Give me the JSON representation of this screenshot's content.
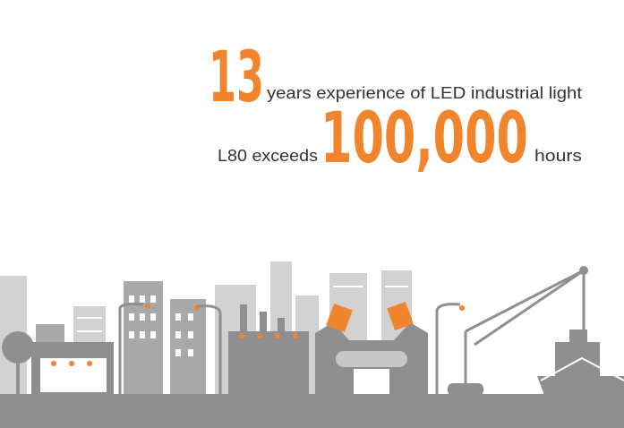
{
  "headline": {
    "line1": {
      "number": "13",
      "text": "years experience of LED industrial light"
    },
    "line2": {
      "prefix": "L80 exceeds",
      "number": "100,000",
      "suffix": "hours"
    }
  }
}
